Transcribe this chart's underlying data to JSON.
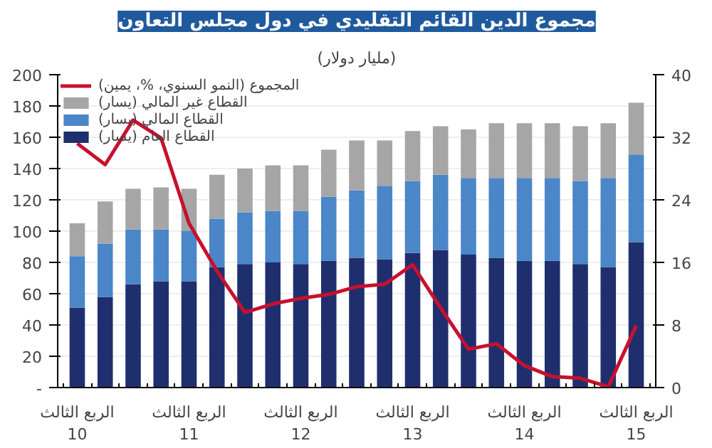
{
  "chart_data": {
    "type": "bar",
    "stacked": true,
    "title": "مجموع الدين القائم التقليدي في دول مجلس التعاون",
    "subtitle": "(مليار دولار)",
    "categories": [
      "الربع الثالث\n10",
      null,
      null,
      null,
      "الربع الثالث\n11",
      null,
      null,
      null,
      "الربع الثالث\n12",
      null,
      null,
      null,
      "الربع الثالث\n13",
      null,
      null,
      null,
      "الربع الثالث\n14",
      null,
      null,
      null,
      "الربع الثالث\n15"
    ],
    "series": [
      {
        "name": "القطاع العام (يسار)",
        "color": "#1f2f6e",
        "values": [
          51,
          58,
          66,
          68,
          68,
          77,
          79,
          80,
          79,
          81,
          83,
          82,
          86,
          88,
          85,
          83,
          81,
          81,
          79,
          77,
          93
        ]
      },
      {
        "name": "القطاع المالي (يسار)",
        "color": "#4a86c8",
        "values": [
          33,
          34,
          35,
          33,
          32,
          31,
          33,
          33,
          34,
          41,
          43,
          47,
          46,
          48,
          49,
          51,
          53,
          53,
          53,
          57,
          56
        ]
      },
      {
        "name": "القطاع غير المالي (يسار)",
        "color": "#a6a6a6",
        "values": [
          21,
          27,
          26,
          27,
          27,
          28,
          28,
          29,
          29,
          30,
          32,
          29,
          32,
          31,
          31,
          35,
          35,
          35,
          35,
          35,
          33
        ]
      },
      {
        "name": "المجموع (النمو السنوي، %، يمين)",
        "type": "line",
        "axis": "y2",
        "color": "#c8102e",
        "values": [
          31.2,
          28.5,
          34.2,
          31.9,
          21,
          14.9,
          9.6,
          10.7,
          11.4,
          11.9,
          12.9,
          13.2,
          15.7,
          10.2,
          4.9,
          5.6,
          2.8,
          1.4,
          1.2,
          0.1,
          7.9
        ]
      }
    ],
    "ylim": [
      0,
      200
    ],
    "yticks": [
      {
        "value": 0,
        "label": "-"
      },
      20,
      40,
      60,
      80,
      100,
      120,
      140,
      160,
      180,
      200
    ],
    "y2lim": [
      0,
      40
    ],
    "y2ticks": [
      0,
      8,
      16,
      24,
      32,
      40
    ],
    "grid": "y",
    "legend": "top left"
  }
}
